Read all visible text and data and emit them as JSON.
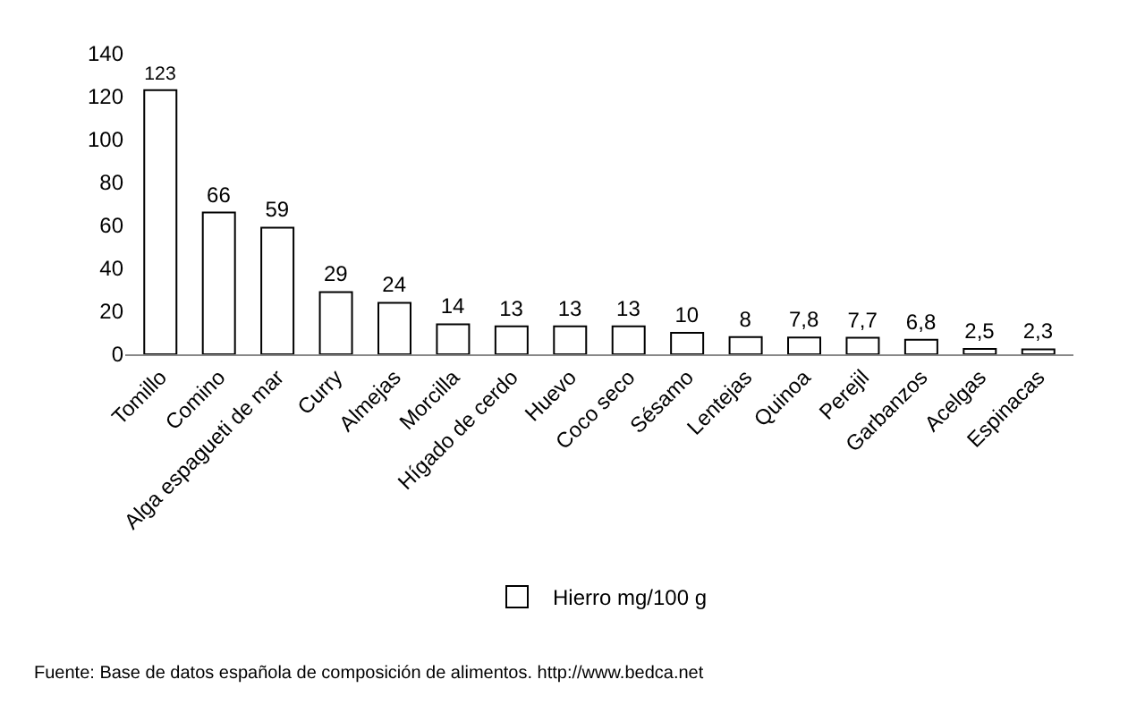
{
  "chart_data": {
    "type": "bar",
    "categories": [
      "Tomillo",
      "Comino",
      "Alga espagueti de mar",
      "Curry",
      "Almejas",
      "Morcilla",
      "Hígado de cerdo",
      "Huevo",
      "Coco seco",
      "Sésamo",
      "Lentejas",
      "Quinoa",
      "Perejil",
      "Garbanzos",
      "Acelgas",
      "Espinacas"
    ],
    "series": [
      {
        "name": "Hierro mg/100 g",
        "color": "#ffffff",
        "values": [
          123,
          66,
          59,
          29,
          24,
          14,
          13,
          13,
          13,
          10,
          8,
          7.8,
          7.7,
          6.8,
          2.5,
          2.3
        ],
        "value_labels": [
          "123",
          "66",
          "59",
          "29",
          "24",
          "14",
          "13",
          "13",
          "13",
          "10",
          "8",
          "7,8",
          "7,7",
          "6,8",
          "2,5",
          "2,3"
        ]
      }
    ],
    "ylim": [
      0,
      140
    ],
    "yticks": [
      0,
      20,
      40,
      60,
      80,
      100,
      120,
      140
    ],
    "grid": false,
    "legend": "bottom",
    "annotations": [
      "Fuente: Base de datos española de composición de alimentos. http://www.bedca.net"
    ]
  }
}
